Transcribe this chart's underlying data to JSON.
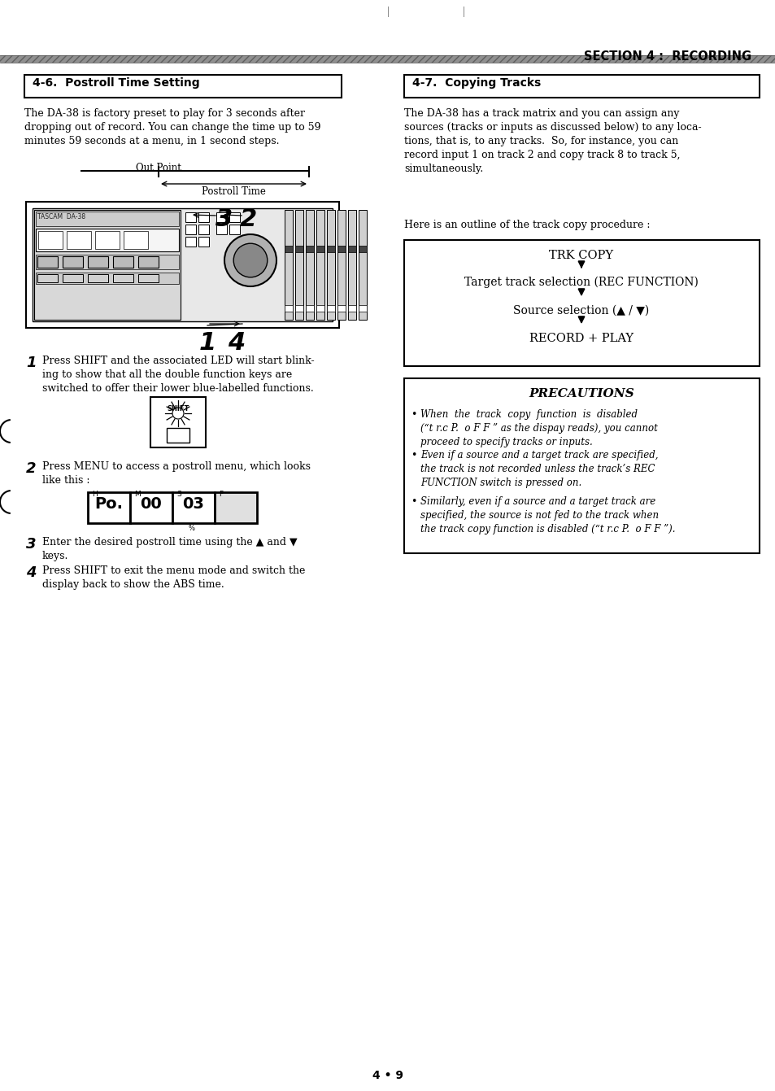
{
  "page_bg": "#ffffff",
  "section_header": "SECTION 4 :  RECORDING",
  "left_section_title": "4-6.  Postroll Time Setting",
  "right_section_title": "4-7.  Copying Tracks",
  "left_body1": "The DA-38 is factory preset to play for 3 seconds after\ndropping out of record. You can change the time up to 59\nminutes 59 seconds at a menu, in 1 second steps.",
  "out_point_label": "Out Point",
  "postroll_time_label": "Postroll Time",
  "right_body1": "The DA-38 has a track matrix and you can assign any\nsources (tracks or inputs as discussed below) to any loca-\ntions, that is, to any tracks.  So, for instance, you can\nrecord input 1 on track 2 and copy track 8 to track 5,\nsimultaneously.",
  "here_is": "Here is an outline of the track copy procedure :",
  "trk_copy_lines": [
    "TRK COPY",
    "Target track selection (REC FUNCTION)",
    "Source selection (▲ / ▼)",
    "RECORD + PLAY"
  ],
  "precautions_title": "PRECAUTIONS",
  "precautions": [
    "When  the  track  copy  function  is  disabled\n(“t r.c P.  o F F ” as the dispay reads), you cannot\nproceed to specify tracks or inputs.",
    "Even if a source and a target track are specified,\nthe track is not recorded unless the track’s REC\nFUNCTION switch is pressed on.",
    "Similarly, even if a source and a target track are\nspecified, the source is not fed to the track when\nthe track copy function is disabled (“t r.c P.  o F F ”)."
  ],
  "steps_left": [
    "Press SHIFT and the associated LED will start blink-\ning to show that all the double function keys are\nswitched to offer their lower blue-labelled functions.",
    "Press MENU to access a postroll menu, which looks\nlike this :",
    "Enter the desired postroll time using the ▲ and ▼\nkeys.",
    "Press SHIFT to exit the menu mode and switch the\ndisplay back to show the ABS time."
  ],
  "page_number": "4 • 9"
}
